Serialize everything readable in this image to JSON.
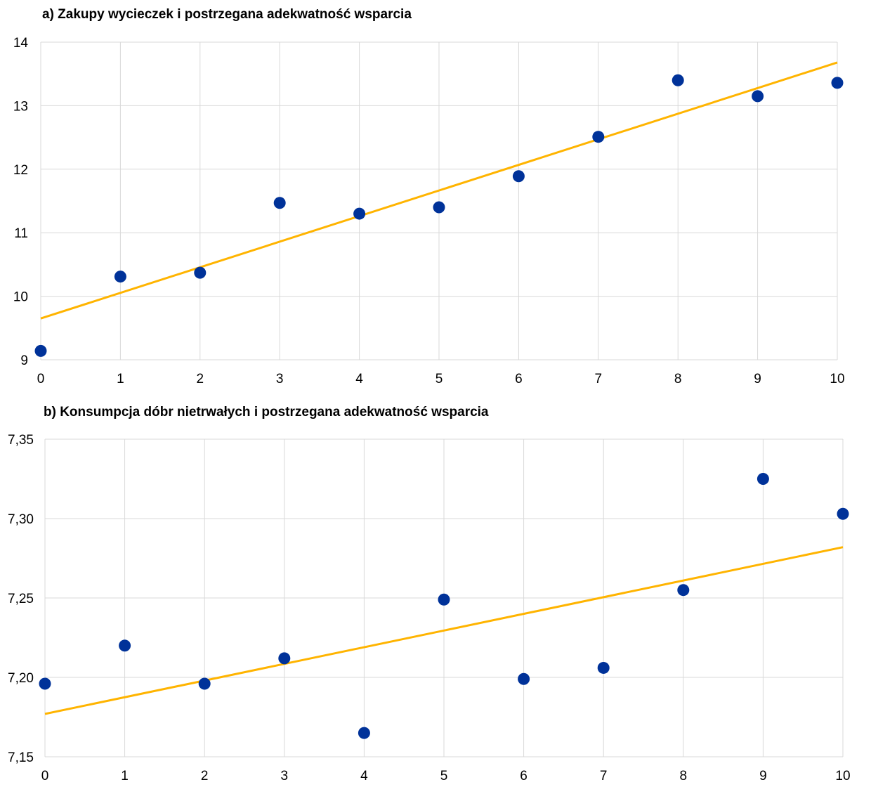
{
  "chart_data": [
    {
      "type": "scatter",
      "title": "a) Zakupy wycieczek i postrzegana adekwatność wsparcia",
      "xlim": [
        0,
        10
      ],
      "ylim": [
        9,
        14
      ],
      "x_ticks": [
        "0",
        "1",
        "2",
        "3",
        "4",
        "5",
        "6",
        "7",
        "8",
        "9",
        "10"
      ],
      "y_ticks": [
        "9",
        "10",
        "11",
        "12",
        "13",
        "14"
      ],
      "grid": true,
      "points": [
        {
          "x": 0,
          "y": 9.14
        },
        {
          "x": 1,
          "y": 10.31
        },
        {
          "x": 2,
          "y": 10.37
        },
        {
          "x": 3,
          "y": 11.47
        },
        {
          "x": 4,
          "y": 11.3
        },
        {
          "x": 5,
          "y": 11.4
        },
        {
          "x": 6,
          "y": 11.89
        },
        {
          "x": 7,
          "y": 12.51
        },
        {
          "x": 8,
          "y": 13.4
        },
        {
          "x": 9,
          "y": 13.15
        },
        {
          "x": 10,
          "y": 13.36
        }
      ],
      "trendline": {
        "x": [
          0,
          10
        ],
        "y": [
          9.65,
          13.68
        ]
      },
      "point_color": "#003299",
      "line_color": "#FFB400"
    },
    {
      "type": "scatter",
      "title": "b)  Konsumpcja dóbr nietrwałych i postrzegana adekwatność wsparcia",
      "xlim": [
        0,
        10
      ],
      "ylim": [
        7.15,
        7.35
      ],
      "x_ticks": [
        "0",
        "1",
        "2",
        "3",
        "4",
        "5",
        "6",
        "7",
        "8",
        "9",
        "10"
      ],
      "y_ticks": [
        "7,15",
        "7,20",
        "7,25",
        "7,30",
        "7,35"
      ],
      "grid": true,
      "points": [
        {
          "x": 0,
          "y": 7.196
        },
        {
          "x": 1,
          "y": 7.22
        },
        {
          "x": 2,
          "y": 7.196
        },
        {
          "x": 3,
          "y": 7.212
        },
        {
          "x": 4,
          "y": 7.165
        },
        {
          "x": 5,
          "y": 7.249
        },
        {
          "x": 6,
          "y": 7.199
        },
        {
          "x": 7,
          "y": 7.206
        },
        {
          "x": 8,
          "y": 7.255
        },
        {
          "x": 9,
          "y": 7.325
        },
        {
          "x": 10,
          "y": 7.303
        }
      ],
      "trendline": {
        "x": [
          0,
          10
        ],
        "y": [
          7.177,
          7.282
        ]
      },
      "point_color": "#003299",
      "line_color": "#FFB400"
    }
  ]
}
